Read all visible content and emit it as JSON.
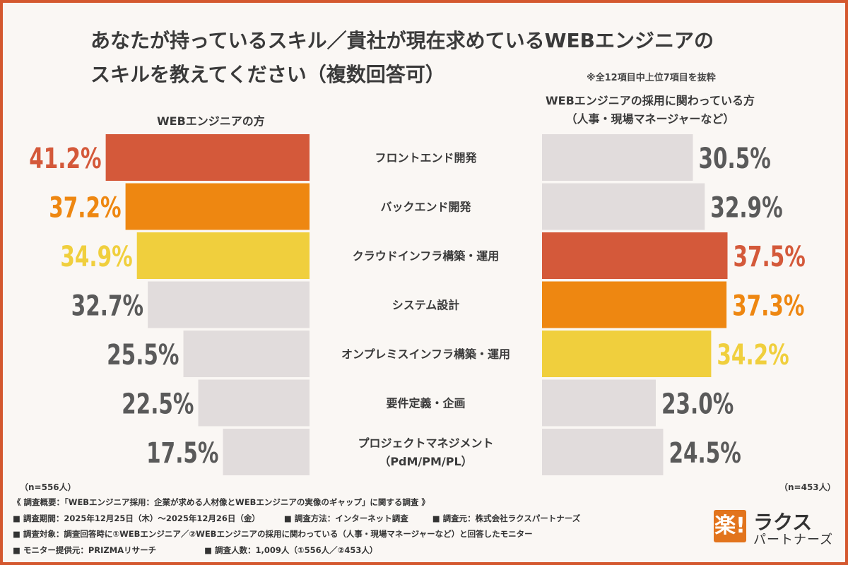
{
  "title_line1": "あなたが持っているスキル／貴社が現在求めているWEBエンジニアの",
  "title_line2": "スキルを教えてください（複数回答可）",
  "note_top": "※全12項目中上位7項目を抜粋",
  "left_header": "WEBエンジニアの方",
  "right_header_line1": "WEBエンジニアの採用に関わっている方",
  "right_header_line2": "（人事・現場マネージャーなど）",
  "n_left": "（n=556人）",
  "n_right": "（n=453人）",
  "chart_data": {
    "type": "bar",
    "categories": [
      [
        "フロントエンド開発"
      ],
      [
        "バックエンド開発"
      ],
      [
        "クラウドインフラ構築・運用"
      ],
      [
        "システム設計"
      ],
      [
        "オンプレミスインフラ構築・運用"
      ],
      [
        "要件定義・企画"
      ],
      [
        "プロジェクトマネジメント",
        "（PdM/PM/PL）"
      ]
    ],
    "series": [
      {
        "name": "WEBエンジニアの方",
        "values": [
          41.2,
          37.2,
          34.9,
          32.7,
          25.5,
          22.5,
          17.5
        ],
        "labels": [
          "41.2%",
          "37.2%",
          "34.9%",
          "32.7%",
          "25.5%",
          "22.5%",
          "17.5%"
        ],
        "colors": [
          "#d4593a",
          "#ee8711",
          "#f0cf3d",
          "#e1dcdc",
          "#e1dcdc",
          "#e1dcdc",
          "#e1dcdc"
        ],
        "label_colors": [
          "#d4593a",
          "#ee8711",
          "#f0cf3d",
          "#5a5a5a",
          "#5a5a5a",
          "#5a5a5a",
          "#5a5a5a"
        ]
      },
      {
        "name": "WEBエンジニアの採用に関わっている方",
        "values": [
          30.5,
          32.9,
          37.5,
          37.3,
          34.2,
          23.0,
          24.5
        ],
        "labels": [
          "30.5%",
          "32.9%",
          "37.5%",
          "37.3%",
          "34.2%",
          "23.0%",
          "24.5%"
        ],
        "colors": [
          "#e1dcdc",
          "#e1dcdc",
          "#d4593a",
          "#ee8711",
          "#f0cf3d",
          "#e1dcdc",
          "#e1dcdc"
        ],
        "label_colors": [
          "#5a5a5a",
          "#5a5a5a",
          "#d4593a",
          "#ee8711",
          "#f0cf3d",
          "#5a5a5a",
          "#5a5a5a"
        ]
      }
    ]
  },
  "footer": {
    "line1": "《 調査概要：「WEBエンジニア採用：企業が求める人材像とWEBエンジニアの実像のギャップ」に関する調査 》",
    "line2a": "■ 調査期間：2025年12月25日（木）～2025年12月26日（金）",
    "line2b": "■ 調査方法：インターネット調査",
    "line2c": "■ 調査元：株式会社ラクスパートナーズ",
    "line3": "■ 調査対象：調査回答時に①WEBエンジニア／②WEBエンジニアの採用に関わっている（人事・現場マネージャーなど）と回答したモニター",
    "line4a": "■ モニター提供元：PRIZMAリサーチ",
    "line4b": "■ 調査人数：1,009人（①556人／②453人）"
  },
  "logo": {
    "mark": "楽!",
    "name": "ラクス",
    "sub": "パートナーズ"
  }
}
